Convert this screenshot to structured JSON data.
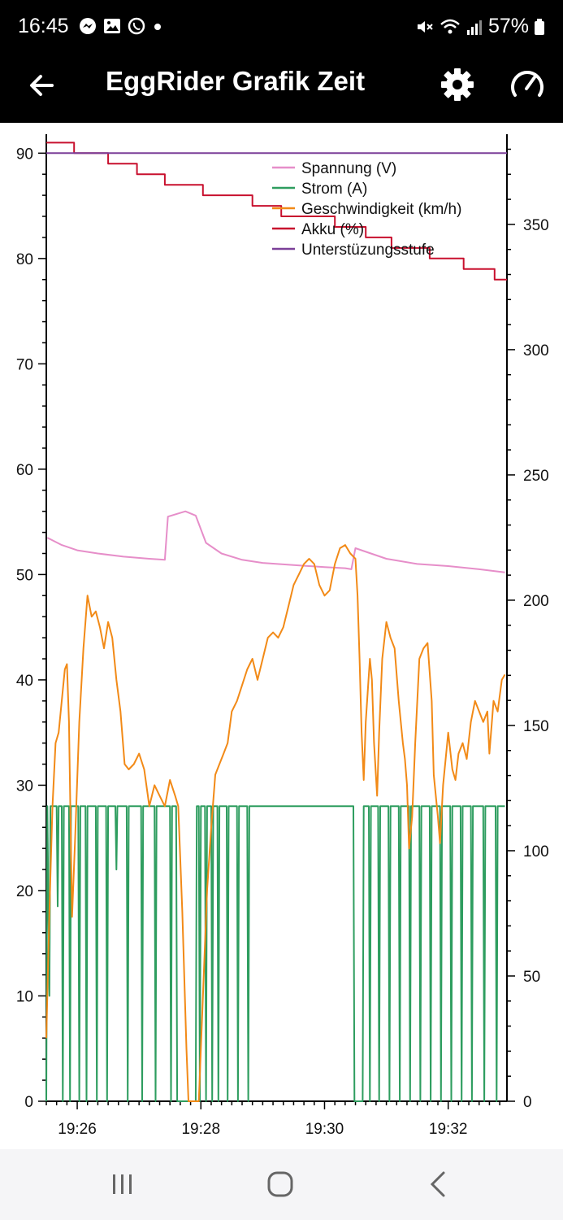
{
  "status_bar": {
    "time": "16:45",
    "battery": "57%",
    "icons": [
      "messenger-icon",
      "gallery-icon",
      "whatsapp-icon",
      "dot-icon",
      "mute-icon",
      "wifi-icon",
      "signal-icon",
      "battery-icon"
    ]
  },
  "app_bar": {
    "title": "EggRider Grafik Zeit",
    "icons": [
      "back-arrow-icon",
      "gear-icon",
      "speedometer-icon"
    ]
  },
  "chart_data": {
    "type": "line",
    "xlabel": "",
    "ylabel": "",
    "x_ticks": [
      "19:26",
      "19:28",
      "19:30",
      "19:32"
    ],
    "x_range": [
      "19:25:30",
      "19:32:57"
    ],
    "y_left": {
      "ticks": [
        "0",
        "10",
        "20",
        "30",
        "40",
        "50",
        "60",
        "70",
        "80",
        "90"
      ],
      "ylim": [
        0,
        91.8
      ]
    },
    "y_right": {
      "ticks": [
        "0",
        "50",
        "100",
        "150",
        "200",
        "250",
        "300",
        "350"
      ],
      "ylim": [
        0,
        386
      ]
    },
    "legend_position": "top-right",
    "series": [
      {
        "name": "Spannung (V)",
        "axis": "left",
        "color": "#e68ec9",
        "points": [
          [
            "19:25:31",
            53.5
          ],
          [
            "19:25:45",
            52.8
          ],
          [
            "19:26:00",
            52.3
          ],
          [
            "19:26:20",
            52.0
          ],
          [
            "19:26:45",
            51.7
          ],
          [
            "19:27:10",
            51.5
          ],
          [
            "19:27:25",
            51.4
          ],
          [
            "19:27:28",
            55.5
          ],
          [
            "19:27:45",
            56.0
          ],
          [
            "19:27:55",
            55.6
          ],
          [
            "19:28:05",
            53.0
          ],
          [
            "19:28:20",
            52.0
          ],
          [
            "19:28:40",
            51.4
          ],
          [
            "19:29:00",
            51.1
          ],
          [
            "19:29:30",
            50.9
          ],
          [
            "19:30:00",
            50.7
          ],
          [
            "19:30:20",
            50.6
          ],
          [
            "19:30:26",
            50.5
          ],
          [
            "19:30:30",
            52.5
          ],
          [
            "19:31:00",
            51.5
          ],
          [
            "19:31:30",
            51.0
          ],
          [
            "19:32:00",
            50.8
          ],
          [
            "19:32:30",
            50.5
          ],
          [
            "19:32:55",
            50.2
          ]
        ],
        "spikes": {
          "band": [
            [
              19.42,
              19.48,
              57.0
            ],
            [
              19.48,
              19.5,
              56.5
            ],
            [
              19.5,
              19.51,
              54.5
            ],
            [
              19.52,
              19.61,
              56.0
            ],
            [
              19.64,
              19.76,
              56.0
            ],
            [
              19.8,
              20.0,
              55.0
            ],
            [
              20.42,
              20.48,
              54.5
            ],
            [
              20.51,
              20.55,
              54.5
            ]
          ]
        }
      },
      {
        "name": "Strom (A)",
        "axis": "left",
        "color": "#2e9d5f",
        "points": [
          [
            "19:25:30",
            0
          ],
          [
            "19:25:31",
            28
          ],
          [
            "19:25:33",
            10
          ],
          [
            "19:25:34",
            28
          ],
          [
            "19:25:40",
            28
          ],
          [
            "19:25:41",
            18.5
          ],
          [
            "19:25:42",
            28
          ],
          [
            "19:25:45",
            28
          ],
          [
            "19:25:46",
            0
          ],
          [
            "19:25:47",
            28
          ],
          [
            "19:25:52",
            28
          ],
          [
            "19:25:53",
            0
          ],
          [
            "19:25:54",
            28
          ],
          [
            "19:26:01",
            28
          ],
          [
            "19:26:02",
            0
          ],
          [
            "19:26:03",
            28
          ],
          [
            "19:26:08",
            28
          ],
          [
            "19:26:09",
            0
          ],
          [
            "19:26:10",
            28
          ],
          [
            "19:26:18",
            28
          ],
          [
            "19:26:19",
            0
          ],
          [
            "19:26:20",
            28
          ],
          [
            "19:26:28",
            28
          ],
          [
            "19:26:29",
            0
          ],
          [
            "19:26:30",
            28
          ],
          [
            "19:26:37",
            28
          ],
          [
            "19:26:38",
            22
          ],
          [
            "19:26:39",
            28
          ],
          [
            "19:26:48",
            28
          ],
          [
            "19:26:49",
            0
          ],
          [
            "19:26:50",
            28
          ],
          [
            "19:27:02",
            28
          ],
          [
            "19:27:03",
            0
          ],
          [
            "19:27:04",
            28
          ],
          [
            "19:27:15",
            28
          ],
          [
            "19:27:16",
            0
          ],
          [
            "19:27:17",
            28
          ],
          [
            "19:27:30",
            28
          ],
          [
            "19:27:31",
            0
          ],
          [
            "19:27:32",
            28
          ],
          [
            "19:27:36",
            28
          ],
          [
            "19:27:37",
            0
          ],
          [
            "19:27:38",
            0
          ],
          [
            "19:27:55",
            0
          ],
          [
            "19:27:56",
            28
          ],
          [
            "19:27:58",
            28
          ],
          [
            "19:27:59",
            0
          ],
          [
            "19:28:00",
            28
          ],
          [
            "19:28:04",
            28
          ],
          [
            "19:28:05",
            0
          ],
          [
            "19:28:06",
            28
          ],
          [
            "19:28:10",
            28
          ],
          [
            "19:28:11",
            0
          ],
          [
            "19:28:12",
            28
          ],
          [
            "19:28:16",
            28
          ],
          [
            "19:28:17",
            0
          ],
          [
            "19:28:18",
            28
          ],
          [
            "19:28:25",
            28
          ],
          [
            "19:28:26",
            0
          ],
          [
            "19:28:27",
            28
          ],
          [
            "19:28:35",
            28
          ],
          [
            "19:28:36",
            0
          ],
          [
            "19:28:37",
            28
          ],
          [
            "19:28:45",
            28
          ],
          [
            "19:28:46",
            0
          ],
          [
            "19:28:47",
            28
          ],
          [
            "19:30:28",
            28
          ],
          [
            "19:30:29",
            0
          ],
          [
            "19:30:30",
            0
          ],
          [
            "19:30:37",
            0
          ],
          [
            "19:30:38",
            28
          ],
          [
            "19:30:43",
            28
          ],
          [
            "19:30:44",
            0
          ],
          [
            "19:30:45",
            28
          ],
          [
            "19:30:52",
            28
          ],
          [
            "19:30:53",
            0
          ],
          [
            "19:30:54",
            28
          ],
          [
            "19:31:02",
            28
          ],
          [
            "19:31:03",
            0
          ],
          [
            "19:31:04",
            28
          ],
          [
            "19:31:12",
            28
          ],
          [
            "19:31:13",
            0
          ],
          [
            "19:31:14",
            28
          ],
          [
            "19:31:22",
            28
          ],
          [
            "19:31:23",
            0
          ],
          [
            "19:31:24",
            28
          ],
          [
            "19:31:32",
            28
          ],
          [
            "19:31:33",
            0
          ],
          [
            "19:31:34",
            28
          ],
          [
            "19:31:42",
            28
          ],
          [
            "19:31:43",
            0
          ],
          [
            "19:31:44",
            28
          ],
          [
            "19:31:52",
            28
          ],
          [
            "19:31:53",
            0
          ],
          [
            "19:31:54",
            28
          ],
          [
            "19:32:02",
            28
          ],
          [
            "19:32:03",
            0
          ],
          [
            "19:32:04",
            28
          ],
          [
            "19:32:12",
            28
          ],
          [
            "19:32:13",
            0
          ],
          [
            "19:32:14",
            28
          ],
          [
            "19:32:22",
            28
          ],
          [
            "19:32:23",
            0
          ],
          [
            "19:32:24",
            28
          ],
          [
            "19:32:34",
            28
          ],
          [
            "19:32:35",
            0
          ],
          [
            "19:32:36",
            28
          ],
          [
            "19:32:46",
            28
          ],
          [
            "19:32:47",
            0
          ],
          [
            "19:32:48",
            28
          ],
          [
            "19:32:55",
            28
          ]
        ]
      },
      {
        "name": "Geschwindigkeit (km/h)",
        "axis": "left",
        "color": "#f28a17",
        "points": [
          [
            "19:25:30",
            6
          ],
          [
            "19:25:33",
            18
          ],
          [
            "19:25:36",
            28
          ],
          [
            "19:25:39",
            34
          ],
          [
            "19:25:42",
            35
          ],
          [
            "19:25:45",
            38
          ],
          [
            "19:25:48",
            41
          ],
          [
            "19:25:50",
            41.5
          ],
          [
            "19:25:52",
            36
          ],
          [
            "19:25:55",
            17.5
          ],
          [
            "19:25:58",
            25
          ],
          [
            "19:26:02",
            36
          ],
          [
            "19:26:06",
            43
          ],
          [
            "19:26:10",
            48
          ],
          [
            "19:26:14",
            46
          ],
          [
            "19:26:18",
            46.5
          ],
          [
            "19:26:22",
            45
          ],
          [
            "19:26:26",
            43
          ],
          [
            "19:26:30",
            45.5
          ],
          [
            "19:26:34",
            44
          ],
          [
            "19:26:38",
            40
          ],
          [
            "19:26:42",
            37
          ],
          [
            "19:26:46",
            32
          ],
          [
            "19:26:50",
            31.5
          ],
          [
            "19:26:55",
            32
          ],
          [
            "19:27:00",
            33
          ],
          [
            "19:27:05",
            31.5
          ],
          [
            "19:27:10",
            28
          ],
          [
            "19:27:15",
            30
          ],
          [
            "19:27:20",
            29
          ],
          [
            "19:27:25",
            28
          ],
          [
            "19:27:30",
            30.5
          ],
          [
            "19:27:35",
            29
          ],
          [
            "19:27:38",
            28
          ],
          [
            "19:27:42",
            18
          ],
          [
            "19:27:46",
            5
          ],
          [
            "19:27:48",
            0
          ],
          [
            "19:27:55",
            0
          ],
          [
            "19:27:58",
            0
          ],
          [
            "19:28:02",
            10
          ],
          [
            "19:28:06",
            20
          ],
          [
            "19:28:10",
            26
          ],
          [
            "19:28:14",
            31
          ],
          [
            "19:28:18",
            32
          ],
          [
            "19:28:22",
            33
          ],
          [
            "19:28:26",
            34
          ],
          [
            "19:28:30",
            37
          ],
          [
            "19:28:35",
            38
          ],
          [
            "19:28:40",
            39.5
          ],
          [
            "19:28:45",
            41
          ],
          [
            "19:28:50",
            42
          ],
          [
            "19:28:55",
            40
          ],
          [
            "19:29:00",
            42
          ],
          [
            "19:29:05",
            44
          ],
          [
            "19:29:10",
            44.5
          ],
          [
            "19:29:15",
            44
          ],
          [
            "19:29:20",
            45
          ],
          [
            "19:29:25",
            47
          ],
          [
            "19:29:30",
            49
          ],
          [
            "19:29:35",
            50
          ],
          [
            "19:29:40",
            51
          ],
          [
            "19:29:45",
            51.5
          ],
          [
            "19:29:50",
            51
          ],
          [
            "19:29:55",
            49
          ],
          [
            "19:30:00",
            48
          ],
          [
            "19:30:05",
            48.5
          ],
          [
            "19:30:10",
            51
          ],
          [
            "19:30:15",
            52.5
          ],
          [
            "19:30:20",
            52.8
          ],
          [
            "19:30:25",
            52
          ],
          [
            "19:30:30",
            51.5
          ],
          [
            "19:30:32",
            48
          ],
          [
            "19:30:34",
            42
          ],
          [
            "19:30:36",
            35
          ],
          [
            "19:30:38",
            30.5
          ],
          [
            "19:30:40",
            36
          ],
          [
            "19:30:44",
            42
          ],
          [
            "19:30:46",
            40
          ],
          [
            "19:30:48",
            34
          ],
          [
            "19:30:51",
            29
          ],
          [
            "19:30:53",
            35
          ],
          [
            "19:30:56",
            42
          ],
          [
            "19:31:00",
            45.5
          ],
          [
            "19:31:04",
            44
          ],
          [
            "19:31:08",
            43
          ],
          [
            "19:31:12",
            38
          ],
          [
            "19:31:16",
            34
          ],
          [
            "19:31:18",
            32.5
          ],
          [
            "19:31:20",
            30
          ],
          [
            "19:31:22",
            24
          ],
          [
            "19:31:25",
            27
          ],
          [
            "19:31:28",
            34
          ],
          [
            "19:31:32",
            42
          ],
          [
            "19:31:36",
            43
          ],
          [
            "19:31:40",
            43.5
          ],
          [
            "19:31:44",
            38
          ],
          [
            "19:31:46",
            31
          ],
          [
            "19:31:50",
            27
          ],
          [
            "19:31:52",
            24.5
          ],
          [
            "19:31:55",
            30
          ],
          [
            "19:31:58",
            33
          ],
          [
            "19:32:00",
            35
          ],
          [
            "19:32:04",
            31.5
          ],
          [
            "19:32:07",
            30.5
          ],
          [
            "19:32:10",
            33
          ],
          [
            "19:32:14",
            34
          ],
          [
            "19:32:18",
            32.5
          ],
          [
            "19:32:22",
            36
          ],
          [
            "19:32:26",
            38
          ],
          [
            "19:32:30",
            37
          ],
          [
            "19:32:34",
            36
          ],
          [
            "19:32:38",
            37
          ],
          [
            "19:32:40",
            33
          ],
          [
            "19:32:44",
            38
          ],
          [
            "19:32:48",
            37
          ],
          [
            "19:32:52",
            40
          ],
          [
            "19:32:55",
            40.5
          ]
        ]
      },
      {
        "name": "Akku (%)",
        "axis": "left",
        "color": "#c8102e",
        "steps": [
          [
            "19:25:30",
            91
          ],
          [
            "19:25:57",
            90
          ],
          [
            "19:26:30",
            89
          ],
          [
            "19:26:58",
            88
          ],
          [
            "19:27:25",
            87
          ],
          [
            "19:28:02",
            86
          ],
          [
            "19:28:50",
            85
          ],
          [
            "19:29:18",
            84
          ],
          [
            "19:30:10",
            83
          ],
          [
            "19:30:40",
            82
          ],
          [
            "19:31:05",
            81
          ],
          [
            "19:31:42",
            80
          ],
          [
            "19:32:15",
            79
          ],
          [
            "19:32:45",
            78
          ],
          [
            "19:32:57",
            78
          ]
        ]
      },
      {
        "name": "Unterstüzungsstufe",
        "axis": "left",
        "color": "#7b3f98",
        "points": [
          [
            "19:25:30",
            90
          ],
          [
            "19:32:57",
            90
          ]
        ]
      }
    ]
  },
  "nav_bar": {
    "icons": [
      "recent-apps-icon",
      "home-icon",
      "back-icon"
    ]
  }
}
